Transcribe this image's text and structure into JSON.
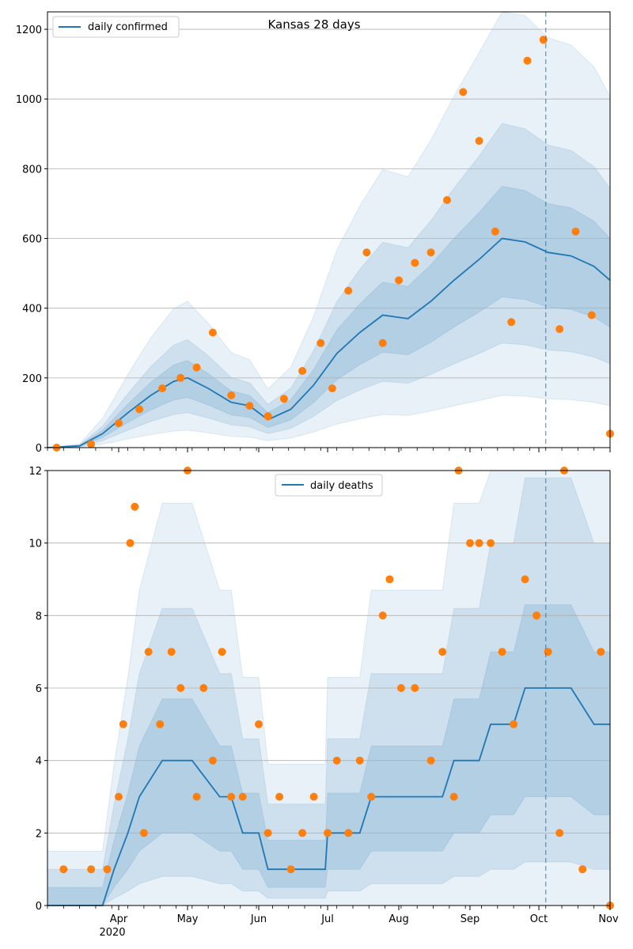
{
  "chart_data": [
    {
      "type": "line",
      "title": "Kansas 28 days",
      "legend": {
        "position": "top-left",
        "entries": [
          "daily confirmed"
        ]
      },
      "ylim": [
        0,
        1250
      ],
      "yticks": [
        0,
        200,
        400,
        600,
        800,
        1000,
        1200
      ],
      "grid": "horizontal",
      "colors": {
        "line": "#1f77b4",
        "points": "#ff7f0e",
        "band": "#1f77b4"
      },
      "forecast_start": "2020-10-04",
      "series": [
        {
          "name": "daily confirmed",
          "x": [
            "2020-03-01",
            "2020-03-15",
            "2020-03-25",
            "2020-04-05",
            "2020-04-15",
            "2020-04-25",
            "2020-05-01",
            "2020-05-10",
            "2020-05-20",
            "2020-05-28",
            "2020-06-05",
            "2020-06-15",
            "2020-06-25",
            "2020-07-05",
            "2020-07-15",
            "2020-07-25",
            "2020-08-05",
            "2020-08-15",
            "2020-08-25",
            "2020-09-05",
            "2020-09-15",
            "2020-09-25",
            "2020-10-05",
            "2020-10-15",
            "2020-10-25",
            "2020-11-01"
          ],
          "y": [
            0,
            5,
            40,
            100,
            150,
            190,
            200,
            170,
            130,
            120,
            80,
            110,
            180,
            270,
            330,
            380,
            370,
            420,
            480,
            540,
            600,
            590,
            560,
            550,
            520,
            480
          ]
        },
        {
          "name": "",
          "x": [
            "2020-03-05",
            "2020-03-20",
            "2020-04-01",
            "2020-04-10",
            "2020-04-20",
            "2020-04-28",
            "2020-05-05",
            "2020-05-12",
            "2020-05-20",
            "2020-05-28",
            "2020-06-05",
            "2020-06-12",
            "2020-06-20",
            "2020-06-28",
            "2020-07-03",
            "2020-07-10",
            "2020-07-18",
            "2020-07-25",
            "2020-08-01",
            "2020-08-08",
            "2020-08-15",
            "2020-08-22",
            "2020-08-29",
            "2020-09-05",
            "2020-09-12",
            "2020-09-19",
            "2020-09-26",
            "2020-10-03",
            "2020-10-10",
            "2020-10-17",
            "2020-10-24",
            "2020-11-01"
          ],
          "y": [
            0,
            10,
            70,
            110,
            170,
            200,
            230,
            330,
            150,
            120,
            90,
            140,
            220,
            300,
            170,
            450,
            560,
            300,
            480,
            530,
            560,
            710,
            1020,
            880,
            620,
            360,
            1110,
            1170,
            340,
            620,
            380,
            40
          ]
        }
      ]
    },
    {
      "type": "line",
      "xlabel": "",
      "legend": {
        "position": "top-center",
        "entries": [
          "daily deaths"
        ]
      },
      "ylim": [
        0,
        12
      ],
      "yticks": [
        0,
        2,
        4,
        6,
        8,
        10,
        12
      ],
      "xtick_labels": [
        "Apr",
        "May",
        "Jun",
        "Jul",
        "Aug",
        "Sep",
        "Oct",
        "Nov"
      ],
      "year_label": "2020",
      "grid": "horizontal",
      "colors": {
        "line": "#1f77b4",
        "points": "#ff7f0e",
        "band": "#1f77b4"
      },
      "forecast_start": "2020-10-04",
      "series": [
        {
          "name": "daily deaths",
          "x": [
            "2020-03-01",
            "2020-03-25",
            "2020-03-30",
            "2020-04-05",
            "2020-04-10",
            "2020-04-20",
            "2020-05-03",
            "2020-05-15",
            "2020-05-20",
            "2020-05-25",
            "2020-06-01",
            "2020-06-05",
            "2020-06-10",
            "2020-06-20",
            "2020-06-30",
            "2020-07-01",
            "2020-07-15",
            "2020-07-20",
            "2020-07-25",
            "2020-08-15",
            "2020-08-20",
            "2020-08-25",
            "2020-09-05",
            "2020-09-10",
            "2020-09-20",
            "2020-09-25",
            "2020-10-05",
            "2020-10-15",
            "2020-10-25",
            "2020-11-01"
          ],
          "y": [
            0,
            0,
            1,
            2,
            3,
            4,
            4,
            3,
            3,
            2,
            2,
            1,
            1,
            1,
            1,
            2,
            2,
            3,
            3,
            3,
            3,
            4,
            4,
            5,
            5,
            6,
            6,
            6,
            5,
            5
          ]
        },
        {
          "name": "",
          "x": [
            "2020-03-08",
            "2020-03-20",
            "2020-03-27",
            "2020-04-01",
            "2020-04-03",
            "2020-04-06",
            "2020-04-08",
            "2020-04-12",
            "2020-04-14",
            "2020-04-19",
            "2020-04-24",
            "2020-04-28",
            "2020-05-01",
            "2020-05-05",
            "2020-05-08",
            "2020-05-12",
            "2020-05-16",
            "2020-05-20",
            "2020-05-25",
            "2020-06-01",
            "2020-06-05",
            "2020-06-10",
            "2020-06-15",
            "2020-06-20",
            "2020-06-25",
            "2020-07-01",
            "2020-07-05",
            "2020-07-10",
            "2020-07-15",
            "2020-07-20",
            "2020-07-25",
            "2020-07-28",
            "2020-08-02",
            "2020-08-08",
            "2020-08-15",
            "2020-08-20",
            "2020-08-25",
            "2020-08-27",
            "2020-09-01",
            "2020-09-05",
            "2020-09-10",
            "2020-09-15",
            "2020-09-20",
            "2020-09-25",
            "2020-09-30",
            "2020-10-05",
            "2020-10-10",
            "2020-10-12",
            "2020-10-20",
            "2020-10-28",
            "2020-11-01"
          ],
          "y": [
            1,
            1,
            1,
            3,
            5,
            10,
            11,
            2,
            7,
            5,
            7,
            6,
            12,
            3,
            6,
            4,
            7,
            3,
            3,
            5,
            2,
            3,
            1,
            2,
            3,
            2,
            4,
            2,
            4,
            3,
            8,
            9,
            6,
            6,
            4,
            7,
            3,
            12,
            10,
            10,
            10,
            7,
            5,
            9,
            8,
            7,
            2,
            12,
            1,
            7,
            0
          ]
        }
      ]
    }
  ]
}
